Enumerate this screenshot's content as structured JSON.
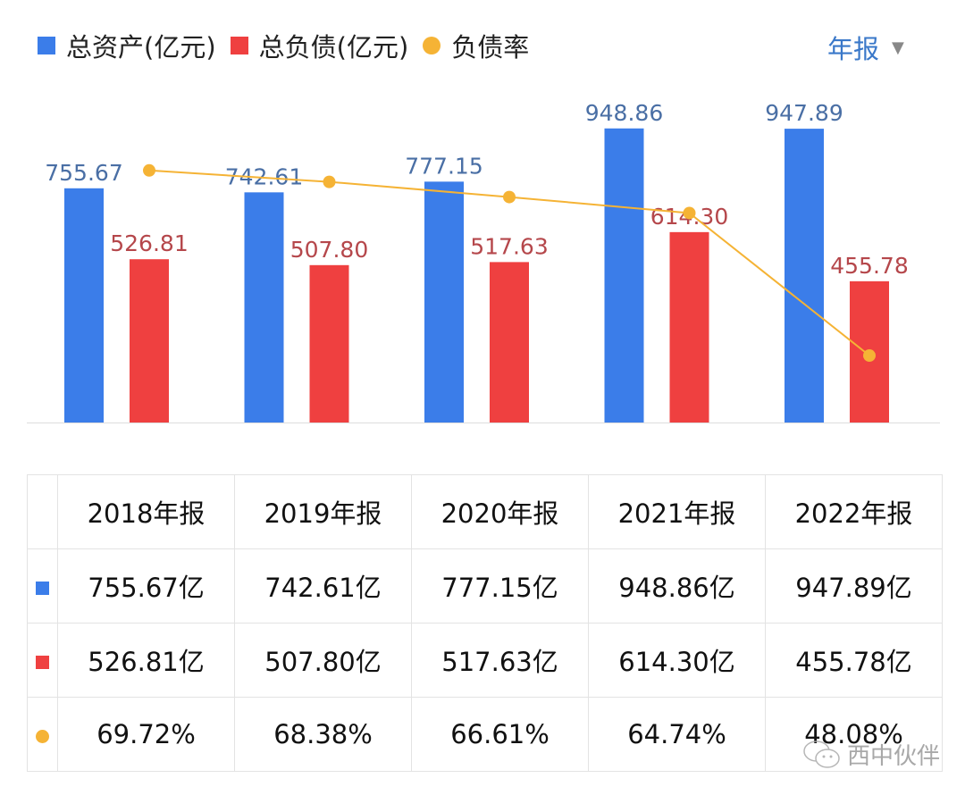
{
  "legend": {
    "assets": "总资产(亿元)",
    "liabilities": "总负债(亿元)",
    "ratio": "负债率"
  },
  "period_selector": {
    "label": "年报",
    "icon": "triangle-down-icon"
  },
  "colors": {
    "assets": "#3b7de9",
    "liabilities": "#ef4040",
    "ratio": "#f5b335",
    "assets_label": "#4a6fa5",
    "liabilities_label": "#b5474b",
    "accent": "#3a78c9"
  },
  "chart_data": {
    "type": "bar",
    "categories": [
      "2018年报",
      "2019年报",
      "2020年报",
      "2021年报",
      "2022年报"
    ],
    "series": [
      {
        "name": "总资产(亿元)",
        "type": "bar",
        "values": [
          755.67,
          742.61,
          777.15,
          948.86,
          947.89
        ],
        "labels": [
          "755.67",
          "742.61",
          "777.15",
          "948.86",
          "947.89"
        ]
      },
      {
        "name": "总负债(亿元)",
        "type": "bar",
        "values": [
          526.81,
          507.8,
          517.63,
          614.3,
          455.78
        ],
        "labels": [
          "526.81",
          "507.80",
          "517.63",
          "614.30",
          "455.78"
        ]
      },
      {
        "name": "负债率",
        "type": "line",
        "values": [
          69.72,
          68.38,
          66.61,
          64.74,
          48.08
        ]
      }
    ],
    "ylim": [
      0,
      1075
    ],
    "y2lim": [
      40.25,
      79.2
    ],
    "grid": false,
    "legend": "top-left"
  },
  "table": {
    "headers": [
      "2018年报",
      "2019年报",
      "2020年报",
      "2021年报",
      "2022年报"
    ],
    "rows": [
      {
        "marker": "square-blue",
        "cells": [
          "755.67亿",
          "742.61亿",
          "777.15亿",
          "948.86亿",
          "947.89亿"
        ]
      },
      {
        "marker": "square-red",
        "cells": [
          "526.81亿",
          "507.80亿",
          "517.63亿",
          "614.30亿",
          "455.78亿"
        ]
      },
      {
        "marker": "dot-orange",
        "cells": [
          "69.72%",
          "68.38%",
          "66.61%",
          "64.74%",
          "48.08%"
        ]
      }
    ]
  },
  "watermark": {
    "text": "西中伙伴",
    "icon": "wechat-icon"
  }
}
